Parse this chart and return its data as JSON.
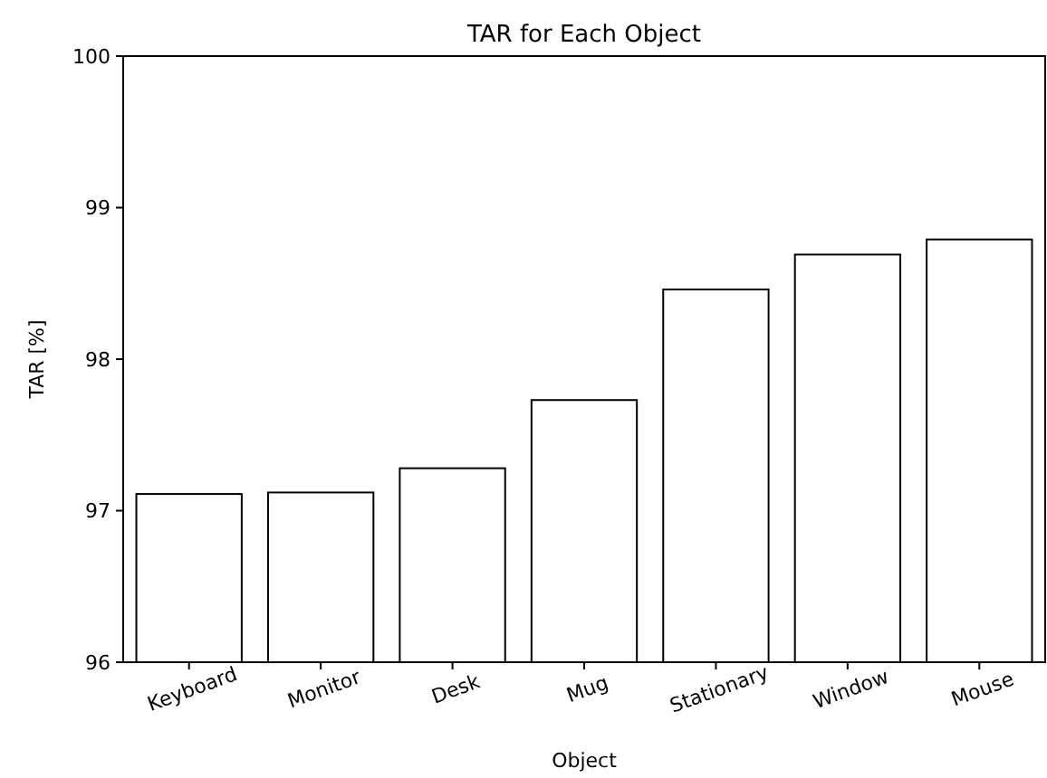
{
  "chart_data": {
    "type": "bar",
    "title": "TAR for Each Object",
    "xlabel": "Object",
    "ylabel": "TAR [%]",
    "categories": [
      "Keyboard",
      "Monitor",
      "Desk",
      "Mug",
      "Stationary",
      "Window",
      "Mouse"
    ],
    "values": [
      97.11,
      97.12,
      97.28,
      97.73,
      98.46,
      98.69,
      98.79
    ],
    "color": "#ffffff",
    "ylim": [
      96,
      100
    ],
    "yticks": [
      96,
      97,
      98,
      99,
      100
    ],
    "grid": false
  }
}
